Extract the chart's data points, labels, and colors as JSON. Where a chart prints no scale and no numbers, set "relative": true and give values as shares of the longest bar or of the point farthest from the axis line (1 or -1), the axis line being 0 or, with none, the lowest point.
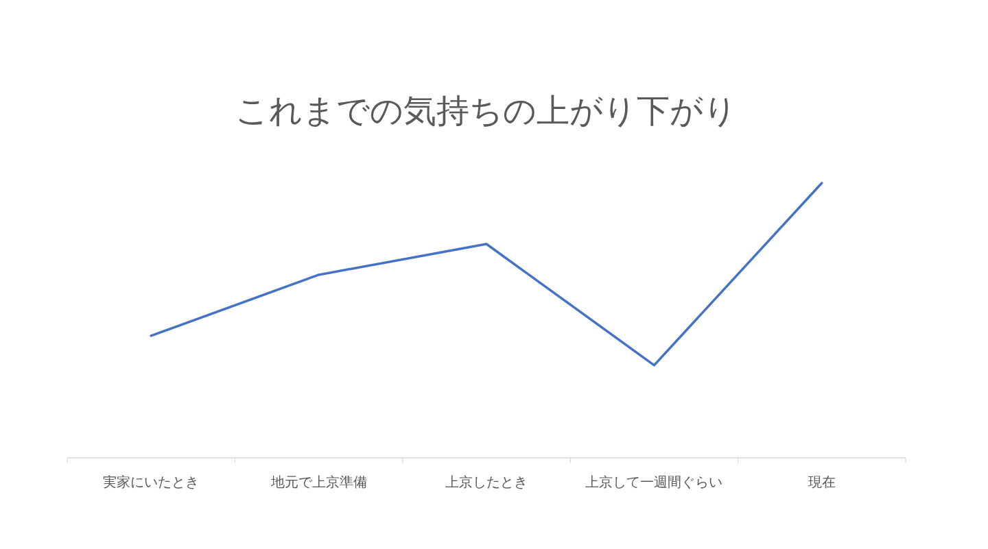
{
  "chart_data": {
    "type": "line",
    "title": "これまでの気持ちの上がり下がり",
    "relative": true,
    "categories": [
      "実家にいたとき",
      "地元で上京準備",
      "上京したとき",
      "上京して一週間ぐらい",
      "現在"
    ],
    "series": [
      {
        "color": "#4472c4",
        "values": [
          0.444,
          0.666,
          0.778,
          0.337,
          1
        ]
      }
    ],
    "grid": false,
    "marker": "none"
  }
}
